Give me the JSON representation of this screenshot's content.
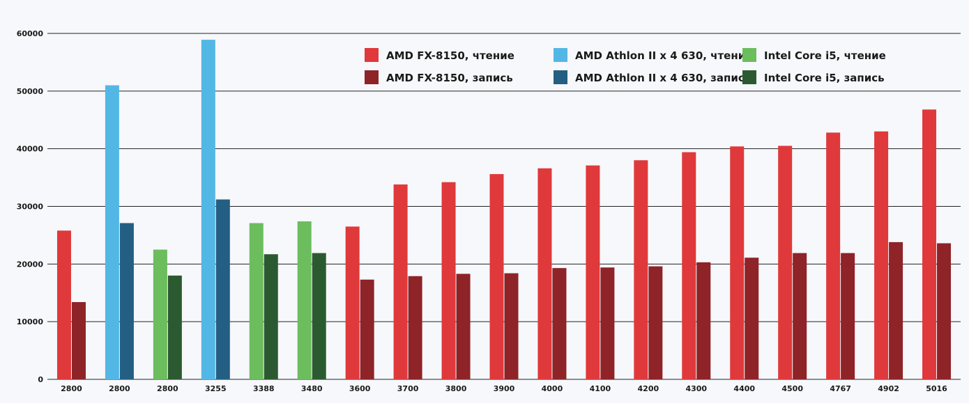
{
  "chart_data": {
    "type": "bar",
    "title": "",
    "xlabel": "",
    "ylabel": "",
    "ylim": [
      0,
      60000
    ],
    "yticks": [
      0,
      10000,
      20000,
      30000,
      40000,
      50000,
      60000
    ],
    "grid": true,
    "legend_position": "top-right",
    "categories": [
      "2800",
      "2800",
      "2800",
      "3255",
      "3388",
      "3480",
      "3600",
      "3700",
      "3800",
      "3900",
      "4000",
      "4100",
      "4200",
      "4300",
      "4400",
      "4500",
      "4767",
      "4902",
      "5016"
    ],
    "series": [
      {
        "name": "AMD FX-8150, чтение",
        "color": "#e0393b",
        "values": [
          25800,
          null,
          null,
          null,
          null,
          null,
          26500,
          33800,
          34200,
          35600,
          36600,
          37100,
          38000,
          39400,
          40400,
          40500,
          42800,
          43000,
          46800
        ]
      },
      {
        "name": "AMD FX-8150, запись",
        "color": "#8e2328",
        "values": [
          13400,
          null,
          null,
          null,
          null,
          null,
          17300,
          17900,
          18300,
          18400,
          19300,
          19400,
          19600,
          20300,
          21100,
          21900,
          21900,
          23800,
          23600
        ]
      },
      {
        "name": "AMD Athlon II x 4 630, чтение",
        "color": "#53b7e6",
        "values": [
          null,
          51000,
          null,
          58900,
          null,
          null,
          null,
          null,
          null,
          null,
          null,
          null,
          null,
          null,
          null,
          null,
          null,
          null,
          null
        ]
      },
      {
        "name": "AMD Athlon II x 4 630, запись",
        "color": "#235f82",
        "values": [
          null,
          27100,
          null,
          31200,
          null,
          null,
          null,
          null,
          null,
          null,
          null,
          null,
          null,
          null,
          null,
          null,
          null,
          null,
          null
        ]
      },
      {
        "name": "Intel Core i5, чтение",
        "color": "#6cbd5d",
        "values": [
          null,
          null,
          22500,
          null,
          27100,
          27400,
          null,
          null,
          null,
          null,
          null,
          null,
          null,
          null,
          null,
          null,
          null,
          null,
          null
        ]
      },
      {
        "name": "Intel Core i5, запись",
        "color": "#2c5a30",
        "values": [
          null,
          null,
          18000,
          null,
          21700,
          21900,
          null,
          null,
          null,
          null,
          null,
          null,
          null,
          null,
          null,
          null,
          null,
          null,
          null
        ]
      }
    ]
  }
}
